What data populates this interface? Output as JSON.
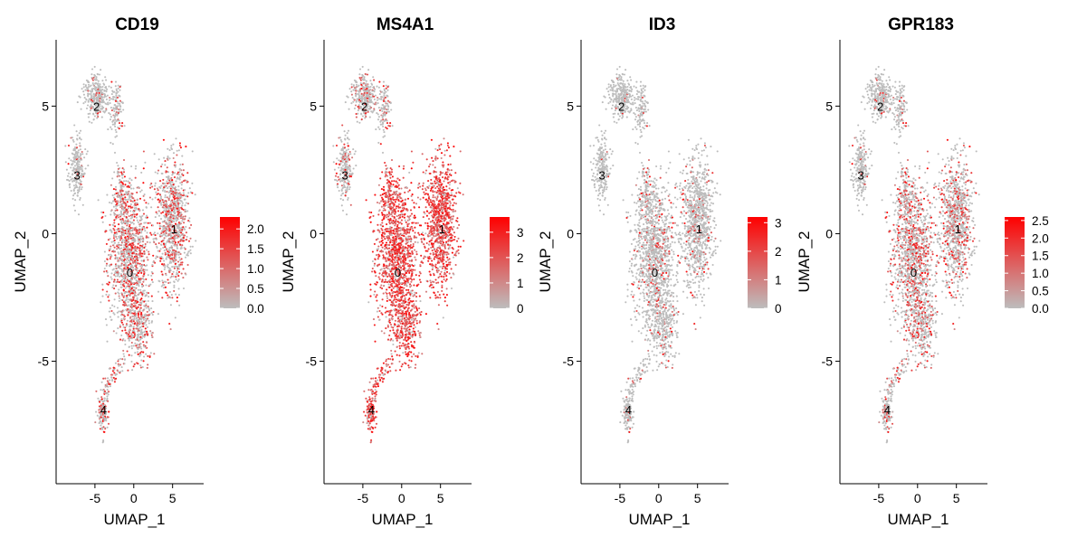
{
  "figure": {
    "panel_titles": [
      "CD19",
      "MS4A1",
      "ID3",
      "GPR183"
    ]
  },
  "chart_data": [
    {
      "type": "scatter",
      "title": "CD19",
      "xlabel": "UMAP_1",
      "ylabel": "UMAP_2",
      "xlim": [
        -10,
        9
      ],
      "ylim": [
        -9.8,
        7.6
      ],
      "xticks": [
        -5,
        0,
        5
      ],
      "yticks": [
        -5,
        0,
        5
      ],
      "xtick_labels": [
        "-5",
        "0",
        "5"
      ],
      "ytick_labels": [
        "-5",
        "0",
        "5"
      ],
      "color_scale": {
        "low": "#bdbdbd",
        "high": "#ff0000",
        "min": 0,
        "max": 2.3,
        "ticks": [
          0,
          0.5,
          1,
          1.5,
          2
        ],
        "tick_labels": [
          "0.0",
          "0.5",
          "1.0",
          "1.5",
          "2.0"
        ]
      },
      "expression_density": 0.42,
      "cluster_labels": [
        {
          "label": "0",
          "x": -0.5,
          "y": -1.5
        },
        {
          "label": "1",
          "x": 5.2,
          "y": 0.2
        },
        {
          "label": "2",
          "x": -4.8,
          "y": 5.0
        },
        {
          "label": "3",
          "x": -7.3,
          "y": 2.3
        },
        {
          "label": "4",
          "x": -3.9,
          "y": -6.9
        }
      ],
      "legend_position": "right",
      "grid": false
    },
    {
      "type": "scatter",
      "title": "MS4A1",
      "xlabel": "UMAP_1",
      "ylabel": "UMAP_2",
      "xlim": [
        -10,
        9
      ],
      "ylim": [
        -9.8,
        7.6
      ],
      "xticks": [
        -5,
        0,
        5
      ],
      "yticks": [
        -5,
        0,
        5
      ],
      "xtick_labels": [
        "-5",
        "0",
        "5"
      ],
      "ytick_labels": [
        "-5",
        "0",
        "5"
      ],
      "color_scale": {
        "low": "#bdbdbd",
        "high": "#ff0000",
        "min": 0,
        "max": 3.6,
        "ticks": [
          0,
          1,
          2,
          3
        ],
        "tick_labels": [
          "0",
          "1",
          "2",
          "3"
        ]
      },
      "expression_density": 0.9,
      "cluster_labels": [
        {
          "label": "0",
          "x": -0.5,
          "y": -1.5
        },
        {
          "label": "1",
          "x": 5.2,
          "y": 0.2
        },
        {
          "label": "2",
          "x": -4.8,
          "y": 5.0
        },
        {
          "label": "3",
          "x": -7.3,
          "y": 2.3
        },
        {
          "label": "4",
          "x": -3.9,
          "y": -6.9
        }
      ],
      "legend_position": "right",
      "grid": false
    },
    {
      "type": "scatter",
      "title": "ID3",
      "xlabel": "UMAP_1",
      "ylabel": "UMAP_2",
      "xlim": [
        -10,
        9
      ],
      "ylim": [
        -9.8,
        7.6
      ],
      "xticks": [
        -5,
        0,
        5
      ],
      "yticks": [
        -5,
        0,
        5
      ],
      "xtick_labels": [
        "-5",
        "0",
        "5"
      ],
      "ytick_labels": [
        "-5",
        "0",
        "5"
      ],
      "color_scale": {
        "low": "#bdbdbd",
        "high": "#ff0000",
        "min": 0,
        "max": 3.2,
        "ticks": [
          0,
          1,
          2,
          3
        ],
        "tick_labels": [
          "0",
          "1",
          "2",
          "3"
        ]
      },
      "expression_density": 0.12,
      "cluster_labels": [
        {
          "label": "0",
          "x": -0.5,
          "y": -1.5
        },
        {
          "label": "1",
          "x": 5.2,
          "y": 0.2
        },
        {
          "label": "2",
          "x": -4.8,
          "y": 5.0
        },
        {
          "label": "3",
          "x": -7.3,
          "y": 2.3
        },
        {
          "label": "4",
          "x": -3.9,
          "y": -6.9
        }
      ],
      "legend_position": "right",
      "grid": false
    },
    {
      "type": "scatter",
      "title": "GPR183",
      "xlabel": "UMAP_1",
      "ylabel": "UMAP_2",
      "xlim": [
        -10,
        9
      ],
      "ylim": [
        -9.8,
        7.6
      ],
      "xticks": [
        -5,
        0,
        5
      ],
      "yticks": [
        -5,
        0,
        5
      ],
      "xtick_labels": [
        "-5",
        "0",
        "5"
      ],
      "ytick_labels": [
        "-5",
        "0",
        "5"
      ],
      "color_scale": {
        "low": "#bdbdbd",
        "high": "#ff0000",
        "min": 0,
        "max": 2.6,
        "ticks": [
          0,
          0.5,
          1,
          1.5,
          2,
          2.5
        ],
        "tick_labels": [
          "0.0",
          "0.5",
          "1.0",
          "1.5",
          "2.0",
          "2.5"
        ]
      },
      "expression_density": 0.32,
      "cluster_labels": [
        {
          "label": "0",
          "x": -0.5,
          "y": -1.5
        },
        {
          "label": "1",
          "x": 5.2,
          "y": 0.2
        },
        {
          "label": "2",
          "x": -4.8,
          "y": 5.0
        },
        {
          "label": "3",
          "x": -7.3,
          "y": 2.3
        },
        {
          "label": "4",
          "x": -3.9,
          "y": -6.9
        }
      ],
      "legend_position": "right",
      "grid": false
    }
  ]
}
